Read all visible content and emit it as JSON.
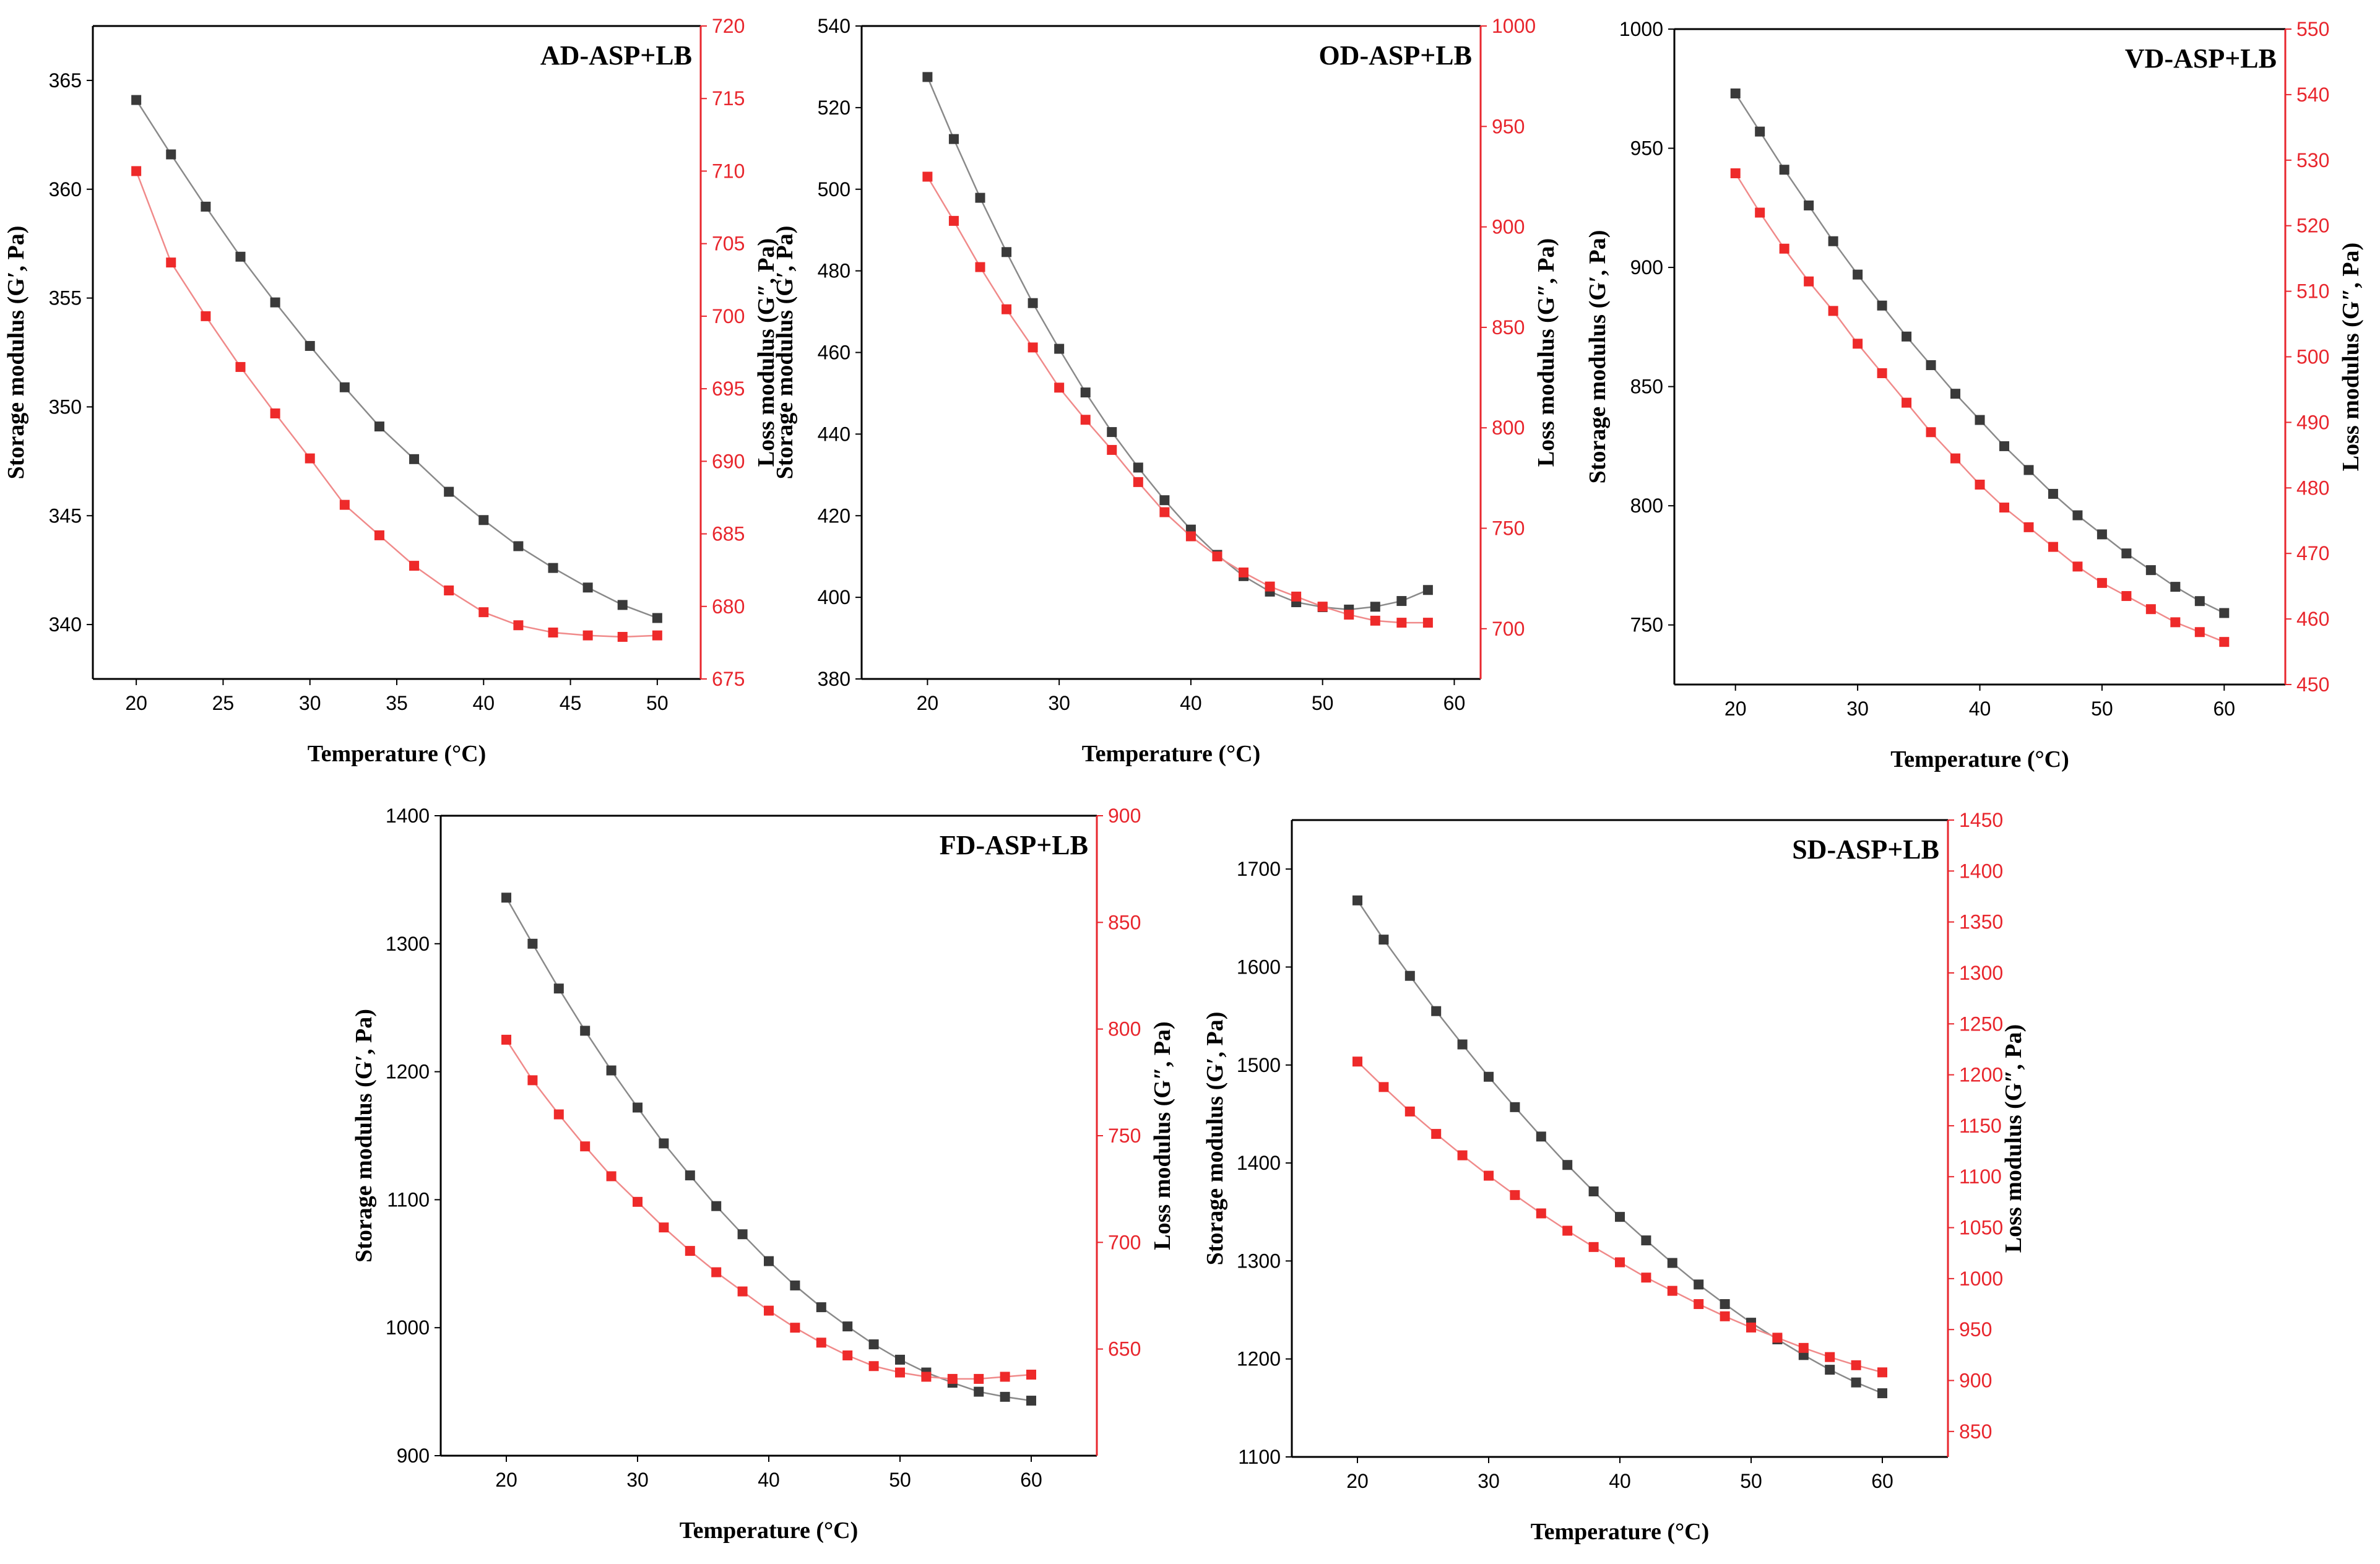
{
  "colors": {
    "storage": "#3a3a3a",
    "loss": "#ee2a2a",
    "axis": "#000000",
    "red_axis": "#e8262d",
    "storage_line": "#8a8a8a",
    "loss_line": "#f08a8a"
  },
  "axis_titles": {
    "x": "Temperature (°C)",
    "y_left": "Storage modulus (G′, Pa)",
    "y_right": "Loss modulus (G″, Pa)"
  },
  "chart_data": [
    {
      "type": "scatter",
      "title": "AD-ASP+LB",
      "xlabel": "Temperature (°C)",
      "ylabel": "Storage modulus (G′, Pa)",
      "y2label": "Loss modulus (G″, Pa)",
      "xlim": [
        17.5,
        52.5
      ],
      "ylim": [
        337.5,
        367.5
      ],
      "y2lim": [
        675,
        720
      ],
      "xticks": [
        20,
        25,
        30,
        35,
        40,
        45,
        50
      ],
      "yticks": [
        340,
        345,
        350,
        355,
        360,
        365
      ],
      "y2ticks": [
        675,
        680,
        685,
        690,
        695,
        700,
        705,
        710,
        715,
        720
      ],
      "x": [
        20,
        22,
        24,
        26,
        28,
        30,
        32,
        34,
        36,
        38,
        40,
        42,
        44,
        46,
        48,
        50
      ],
      "series": [
        {
          "name": "Storage modulus (G′, Pa)",
          "axis": "left",
          "color": "#3a3a3a",
          "values": [
            364.1,
            361.6,
            359.2,
            356.9,
            354.8,
            352.8,
            350.9,
            349.1,
            347.6,
            346.1,
            344.8,
            343.6,
            342.6,
            341.7,
            340.9,
            340.3
          ]
        },
        {
          "name": "Loss modulus (G″, Pa)",
          "axis": "right",
          "color": "#ee2a2a",
          "values": [
            710.0,
            703.7,
            700.0,
            696.5,
            693.3,
            690.2,
            687.0,
            684.9,
            682.8,
            681.1,
            679.6,
            678.7,
            678.2,
            678.0,
            677.9,
            678.0
          ]
        }
      ]
    },
    {
      "type": "scatter",
      "title": "OD-ASP+LB",
      "xlabel": "Temperature (°C)",
      "ylabel": "Storage modulus (G′, Pa)",
      "y2label": "Loss modulus (G″, Pa)",
      "xlim": [
        15,
        62
      ],
      "ylim": [
        380,
        540
      ],
      "y2lim": [
        675,
        1000
      ],
      "xticks": [
        20,
        30,
        40,
        50,
        60
      ],
      "yticks": [
        380,
        400,
        420,
        440,
        460,
        480,
        500,
        520,
        540
      ],
      "y2ticks": [
        700,
        750,
        800,
        850,
        900,
        950,
        1000
      ],
      "x": [
        20,
        22,
        24,
        26,
        28,
        30,
        32,
        34,
        36,
        38,
        40,
        42,
        44,
        46,
        48,
        50,
        52,
        54,
        56,
        58
      ],
      "series": [
        {
          "name": "Storage modulus (G′, Pa)",
          "axis": "left",
          "color": "#3a3a3a",
          "values": [
            527.5,
            512.3,
            497.9,
            484.6,
            472.1,
            460.9,
            450.2,
            440.5,
            431.8,
            423.8,
            416.6,
            410.4,
            405.2,
            401.4,
            398.8,
            397.6,
            397.0,
            397.7,
            399.1,
            401.8
          ]
        },
        {
          "name": "Loss modulus (G″, Pa)",
          "axis": "right",
          "color": "#ee2a2a",
          "values": [
            925,
            903,
            880,
            859,
            840,
            820,
            804,
            789,
            773,
            758,
            746,
            736,
            728,
            721,
            716,
            711,
            707,
            704,
            703,
            703
          ]
        }
      ]
    },
    {
      "type": "scatter",
      "title": "VD-ASP+LB",
      "xlabel": "Temperature (°C)",
      "ylabel": "Storage modulus (G′, Pa)",
      "y2label": "Loss modulus (G″, Pa)",
      "xlim": [
        15,
        65
      ],
      "ylim": [
        725,
        1000
      ],
      "y2lim": [
        450,
        550
      ],
      "xticks": [
        20,
        30,
        40,
        50,
        60
      ],
      "yticks": [
        750,
        800,
        850,
        900,
        950,
        1000
      ],
      "y2ticks": [
        450,
        460,
        470,
        480,
        490,
        500,
        510,
        520,
        530,
        540,
        550
      ],
      "x": [
        20,
        22,
        24,
        26,
        28,
        30,
        32,
        34,
        36,
        38,
        40,
        42,
        44,
        46,
        48,
        50,
        52,
        54,
        56,
        58,
        60
      ],
      "series": [
        {
          "name": "Storage modulus (G′, Pa)",
          "axis": "left",
          "color": "#3a3a3a",
          "values": [
            973,
            957,
            941,
            926,
            911,
            897,
            884,
            871,
            859,
            847,
            836,
            825,
            815,
            805,
            796,
            788,
            780,
            773,
            766,
            760,
            755
          ]
        },
        {
          "name": "Loss modulus (G″, Pa)",
          "axis": "right",
          "color": "#ee2a2a",
          "values": [
            528,
            522,
            516.5,
            511.5,
            507,
            502,
            497.5,
            493,
            488.5,
            484.5,
            480.5,
            477,
            474,
            471,
            468,
            465.5,
            463.5,
            461.5,
            459.5,
            458,
            456.5
          ]
        }
      ]
    },
    {
      "type": "scatter",
      "title": "FD-ASP+LB",
      "xlabel": "Temperature (°C)",
      "ylabel": "Storage modulus (G′, Pa)",
      "y2label": "Loss modulus (G″, Pa)",
      "xlim": [
        15,
        65
      ],
      "ylim": [
        900,
        1400
      ],
      "y2lim": [
        600,
        900
      ],
      "xticks": [
        20,
        30,
        40,
        50,
        60
      ],
      "yticks": [
        900,
        1000,
        1100,
        1200,
        1300,
        1400
      ],
      "y2ticks": [
        650,
        700,
        750,
        800,
        850,
        900
      ],
      "x": [
        20,
        22,
        24,
        26,
        28,
        30,
        32,
        34,
        36,
        38,
        40,
        42,
        44,
        46,
        48,
        50,
        52,
        54,
        56,
        58,
        60
      ],
      "series": [
        {
          "name": "Storage modulus (G′, Pa)",
          "axis": "left",
          "color": "#3a3a3a",
          "values": [
            1336,
            1300,
            1265,
            1232,
            1201,
            1172,
            1144,
            1119,
            1095,
            1073,
            1052,
            1033,
            1016,
            1001,
            987,
            975,
            965,
            957,
            950,
            946,
            943
          ]
        },
        {
          "name": "Loss modulus (G″, Pa)",
          "axis": "right",
          "color": "#ee2a2a",
          "values": [
            795,
            776,
            760,
            745,
            731,
            719,
            707,
            696,
            686,
            677,
            668,
            660,
            653,
            647,
            642,
            639,
            637,
            636,
            636,
            637,
            638
          ]
        }
      ]
    },
    {
      "type": "scatter",
      "title": "SD-ASP+LB",
      "xlabel": "Temperature (°C)",
      "ylabel": "Storage modulus (G′, Pa)",
      "y2label": "Loss modulus (G″, Pa)",
      "xlim": [
        15,
        65
      ],
      "ylim": [
        1100,
        1750
      ],
      "y2lim": [
        825,
        1450
      ],
      "xticks": [
        20,
        30,
        40,
        50,
        60
      ],
      "yticks": [
        1100,
        1200,
        1300,
        1400,
        1500,
        1600,
        1700
      ],
      "y2ticks": [
        850,
        900,
        950,
        1000,
        1050,
        1100,
        1150,
        1200,
        1250,
        1300,
        1350,
        1400,
        1450
      ],
      "x": [
        20,
        22,
        24,
        26,
        28,
        30,
        32,
        34,
        36,
        38,
        40,
        42,
        44,
        46,
        48,
        50,
        52,
        54,
        56,
        58,
        60
      ],
      "series": [
        {
          "name": "Storage modulus (G′, Pa)",
          "axis": "left",
          "color": "#3a3a3a",
          "values": [
            1668,
            1628,
            1591,
            1555,
            1521,
            1488,
            1457,
            1427,
            1398,
            1371,
            1345,
            1321,
            1298,
            1276,
            1256,
            1237,
            1220,
            1204,
            1189,
            1176,
            1165
          ]
        },
        {
          "name": "Loss modulus (G″, Pa)",
          "axis": "right",
          "color": "#ee2a2a",
          "values": [
            1213,
            1188,
            1164,
            1142,
            1121,
            1101,
            1082,
            1064,
            1047,
            1031,
            1016,
            1001,
            988,
            975,
            963,
            952,
            942,
            932,
            923,
            915,
            908
          ]
        }
      ]
    }
  ]
}
